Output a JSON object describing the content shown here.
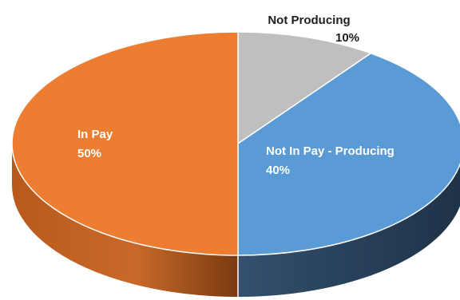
{
  "chart_data": {
    "type": "pie",
    "style": "3d",
    "title": "",
    "slices": [
      {
        "name": "Not Producing",
        "value": 10,
        "label_value": "10%",
        "color": "#BFBFBF",
        "side_color": "#8C8C8C"
      },
      {
        "name": "Not In Pay - Producing",
        "value": 40,
        "label_value": "40%",
        "color": "#5B9BD5",
        "side_color": "#2E4A66"
      },
      {
        "name": "In Pay",
        "value": 50,
        "label_value": "50%",
        "color": "#ED7D31",
        "side_color": "#9C4A14"
      }
    ],
    "legend": "none",
    "data_labels": "category and percentage"
  }
}
